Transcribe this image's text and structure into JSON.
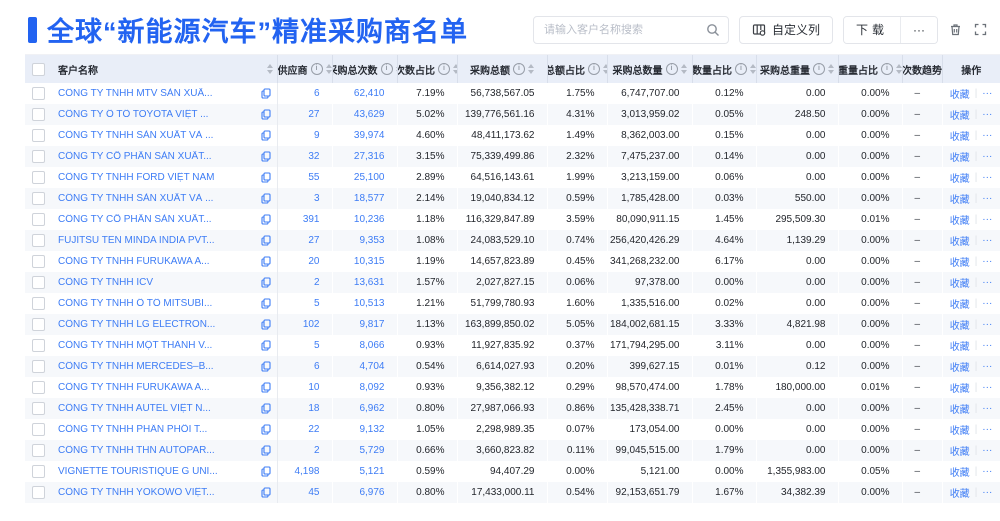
{
  "header": {
    "title": "全球“新能源汽车”精准采购商名单",
    "search_placeholder": "请输入客户名称搜索",
    "customize_columns_label": "自定义列",
    "download_label": "下载",
    "more_label": "···"
  },
  "table": {
    "columns": [
      {
        "label": "客户名称",
        "info": false,
        "sort": true
      },
      {
        "label": "供应商",
        "info": true,
        "sort": true
      },
      {
        "label": "采购总次数",
        "info": true,
        "sort": true
      },
      {
        "label": "次数占比",
        "info": true,
        "sort": true
      },
      {
        "label": "采购总额",
        "info": true,
        "sort": true
      },
      {
        "label": "总额占比",
        "info": true,
        "sort": true
      },
      {
        "label": "采购总数量",
        "info": true,
        "sort": true
      },
      {
        "label": "数量占比",
        "info": true,
        "sort": true
      },
      {
        "label": "采购总重量",
        "info": true,
        "sort": true
      },
      {
        "label": "重量占比",
        "info": true,
        "sort": true
      },
      {
        "label": "次数趋势",
        "info": false,
        "sort": false
      },
      {
        "label": "操作",
        "info": false,
        "sort": false
      }
    ],
    "ops": {
      "favorite_label": "收藏",
      "more_label": "···"
    },
    "rows": [
      {
        "name": "CÔNG TY TNHH MTV SẢN XUẤ...",
        "supplier": "6",
        "purchase_count": "62,410",
        "count_pct": "7.19%",
        "amount": "56,738,567.05",
        "amount_pct": "1.75%",
        "quantity": "6,747,707.00",
        "quantity_pct": "0.12%",
        "weight": "0.00",
        "weight_pct": "0.00%",
        "trend": "–"
      },
      {
        "name": "CÔNG TY Ô TÔ TOYOTA VIỆT ...",
        "supplier": "27",
        "purchase_count": "43,629",
        "count_pct": "5.02%",
        "amount": "139,776,561.16",
        "amount_pct": "4.31%",
        "quantity": "3,013,959.02",
        "quantity_pct": "0.05%",
        "weight": "248.50",
        "weight_pct": "0.00%",
        "trend": "–"
      },
      {
        "name": "CÔNG TY TNHH SẢN XUẤT VÀ ...",
        "supplier": "9",
        "purchase_count": "39,974",
        "count_pct": "4.60%",
        "amount": "48,411,173.62",
        "amount_pct": "1.49%",
        "quantity": "8,362,003.00",
        "quantity_pct": "0.15%",
        "weight": "0.00",
        "weight_pct": "0.00%",
        "trend": "–"
      },
      {
        "name": "CÔNG TY CỔ PHẦN SẢN XUẤT...",
        "supplier": "32",
        "purchase_count": "27,316",
        "count_pct": "3.15%",
        "amount": "75,339,499.86",
        "amount_pct": "2.32%",
        "quantity": "7,475,237.00",
        "quantity_pct": "0.14%",
        "weight": "0.00",
        "weight_pct": "0.00%",
        "trend": "–"
      },
      {
        "name": "CÔNG TY TNHH FORD VIỆT NAM",
        "supplier": "55",
        "purchase_count": "25,100",
        "count_pct": "2.89%",
        "amount": "64,516,143.61",
        "amount_pct": "1.99%",
        "quantity": "3,213,159.00",
        "quantity_pct": "0.06%",
        "weight": "0.00",
        "weight_pct": "0.00%",
        "trend": "–"
      },
      {
        "name": "CÔNG TY TNHH SẢN XUẤT VÀ ...",
        "supplier": "3",
        "purchase_count": "18,577",
        "count_pct": "2.14%",
        "amount": "19,040,834.12",
        "amount_pct": "0.59%",
        "quantity": "1,785,428.00",
        "quantity_pct": "0.03%",
        "weight": "550.00",
        "weight_pct": "0.00%",
        "trend": "–"
      },
      {
        "name": "CÔNG TY CỔ PHẦN SẢN XUẤT...",
        "supplier": "391",
        "purchase_count": "10,236",
        "count_pct": "1.18%",
        "amount": "116,329,847.89",
        "amount_pct": "3.59%",
        "quantity": "80,090,911.15",
        "quantity_pct": "1.45%",
        "weight": "295,509.30",
        "weight_pct": "0.01%",
        "trend": "–"
      },
      {
        "name": "FUJITSU TEN MINDA INDIA PVT...",
        "supplier": "27",
        "purchase_count": "9,353",
        "count_pct": "1.08%",
        "amount": "24,083,529.10",
        "amount_pct": "0.74%",
        "quantity": "256,420,426.29",
        "quantity_pct": "4.64%",
        "weight": "1,139.29",
        "weight_pct": "0.00%",
        "trend": "–"
      },
      {
        "name": "CÔNG TY TNHH FURUKAWA A...",
        "supplier": "20",
        "purchase_count": "10,315",
        "count_pct": "1.19%",
        "amount": "14,657,823.89",
        "amount_pct": "0.45%",
        "quantity": "341,268,232.00",
        "quantity_pct": "6.17%",
        "weight": "0.00",
        "weight_pct": "0.00%",
        "trend": "–"
      },
      {
        "name": "CÔNG TY TNHH ICV",
        "supplier": "2",
        "purchase_count": "13,631",
        "count_pct": "1.57%",
        "amount": "2,027,827.15",
        "amount_pct": "0.06%",
        "quantity": "97,378.00",
        "quantity_pct": "0.00%",
        "weight": "0.00",
        "weight_pct": "0.00%",
        "trend": "–"
      },
      {
        "name": "CÔNG TY TNHH Ô TÔ MITSUBI...",
        "supplier": "5",
        "purchase_count": "10,513",
        "count_pct": "1.21%",
        "amount": "51,799,780.93",
        "amount_pct": "1.60%",
        "quantity": "1,335,516.00",
        "quantity_pct": "0.02%",
        "weight": "0.00",
        "weight_pct": "0.00%",
        "trend": "–"
      },
      {
        "name": "CÔNG TY TNHH LG ELECTRON...",
        "supplier": "102",
        "purchase_count": "9,817",
        "count_pct": "1.13%",
        "amount": "163,899,850.02",
        "amount_pct": "5.05%",
        "quantity": "184,002,681.15",
        "quantity_pct": "3.33%",
        "weight": "4,821.98",
        "weight_pct": "0.00%",
        "trend": "–"
      },
      {
        "name": "CÔNG TY TNHH MỘT THÀNH V...",
        "supplier": "5",
        "purchase_count": "8,066",
        "count_pct": "0.93%",
        "amount": "11,927,835.92",
        "amount_pct": "0.37%",
        "quantity": "171,794,295.00",
        "quantity_pct": "3.11%",
        "weight": "0.00",
        "weight_pct": "0.00%",
        "trend": "–"
      },
      {
        "name": "CÔNG TY TNHH MERCEDES–B...",
        "supplier": "6",
        "purchase_count": "4,704",
        "count_pct": "0.54%",
        "amount": "6,614,027.93",
        "amount_pct": "0.20%",
        "quantity": "399,627.15",
        "quantity_pct": "0.01%",
        "weight": "0.12",
        "weight_pct": "0.00%",
        "trend": "–"
      },
      {
        "name": "CÔNG TY TNHH FURUKAWA A...",
        "supplier": "10",
        "purchase_count": "8,092",
        "count_pct": "0.93%",
        "amount": "9,356,382.12",
        "amount_pct": "0.29%",
        "quantity": "98,570,474.00",
        "quantity_pct": "1.78%",
        "weight": "180,000.00",
        "weight_pct": "0.01%",
        "trend": "–"
      },
      {
        "name": "CÔNG TY TNHH AUTEL VIỆT N...",
        "supplier": "18",
        "purchase_count": "6,962",
        "count_pct": "0.80%",
        "amount": "27,987,066.93",
        "amount_pct": "0.86%",
        "quantity": "135,428,338.71",
        "quantity_pct": "2.45%",
        "weight": "0.00",
        "weight_pct": "0.00%",
        "trend": "–"
      },
      {
        "name": "CÔNG TY TNHH PHÂN PHỐI T...",
        "supplier": "22",
        "purchase_count": "9,132",
        "count_pct": "1.05%",
        "amount": "2,298,989.35",
        "amount_pct": "0.07%",
        "quantity": "173,054.00",
        "quantity_pct": "0.00%",
        "weight": "0.00",
        "weight_pct": "0.00%",
        "trend": "–"
      },
      {
        "name": "CÔNG TY TNHH THN AUTOPAR...",
        "supplier": "2",
        "purchase_count": "5,729",
        "count_pct": "0.66%",
        "amount": "3,660,823.82",
        "amount_pct": "0.11%",
        "quantity": "99,045,515.00",
        "quantity_pct": "1.79%",
        "weight": "0.00",
        "weight_pct": "0.00%",
        "trend": "–"
      },
      {
        "name": "VIGNETTE TOURISTIQUE G UNI...",
        "supplier": "4,198",
        "purchase_count": "5,121",
        "count_pct": "0.59%",
        "amount": "94,407.29",
        "amount_pct": "0.00%",
        "quantity": "5,121.00",
        "quantity_pct": "0.00%",
        "weight": "1,355,983.00",
        "weight_pct": "0.05%",
        "trend": "–"
      },
      {
        "name": "CÔNG TY TNHH YOKOWO VIỆT...",
        "supplier": "45",
        "purchase_count": "6,976",
        "count_pct": "0.80%",
        "amount": "17,433,000.11",
        "amount_pct": "0.54%",
        "quantity": "92,153,651.79",
        "quantity_pct": "1.67%",
        "weight": "34,382.39",
        "weight_pct": "0.00%",
        "trend": "–"
      }
    ]
  },
  "colors": {
    "accent_blue": "#2263f1",
    "link_blue": "#3d7cf5",
    "header_bg": "#e9eef8",
    "stripe_bg": "#f6f8fb"
  }
}
